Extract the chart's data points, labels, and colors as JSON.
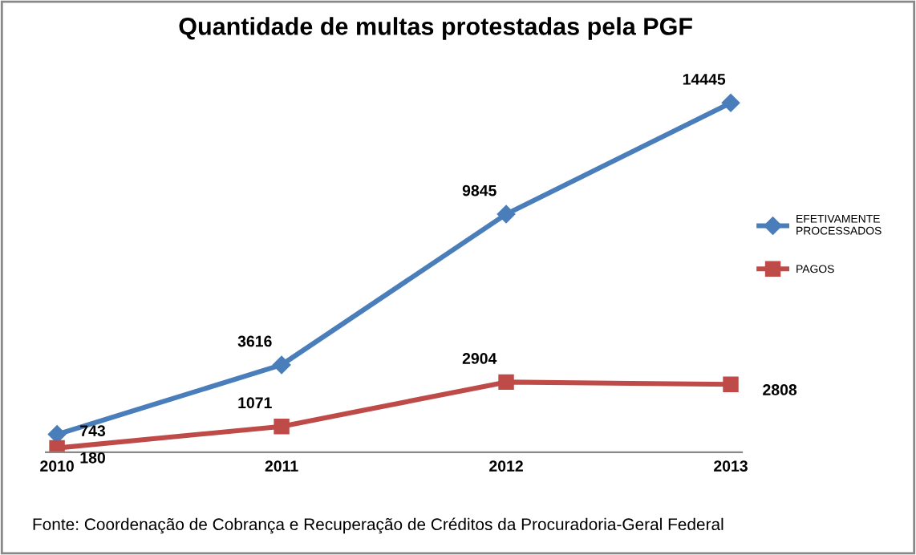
{
  "chart_data": {
    "type": "line",
    "title": "Quantidade de multas protestadas pela PGF",
    "categories": [
      "2010",
      "2011",
      "2012",
      "2013"
    ],
    "series": [
      {
        "name": "EFETIVAMENTE PROCESSADOS",
        "color": "#4a7ebb",
        "values": [
          743,
          3616,
          9845,
          14445
        ],
        "marker": "diamond"
      },
      {
        "name": "PAGOS",
        "color": "#be4b48",
        "values": [
          180,
          1071,
          2904,
          2808
        ],
        "marker": "square"
      }
    ],
    "data_labels": true,
    "legend": "right",
    "grid": false,
    "tick_labels": "x",
    "annotations": [
      "Fonte: Coordenação de Cobrança e Recuperação de Créditos da Procuradoria-Geral Federal"
    ]
  }
}
